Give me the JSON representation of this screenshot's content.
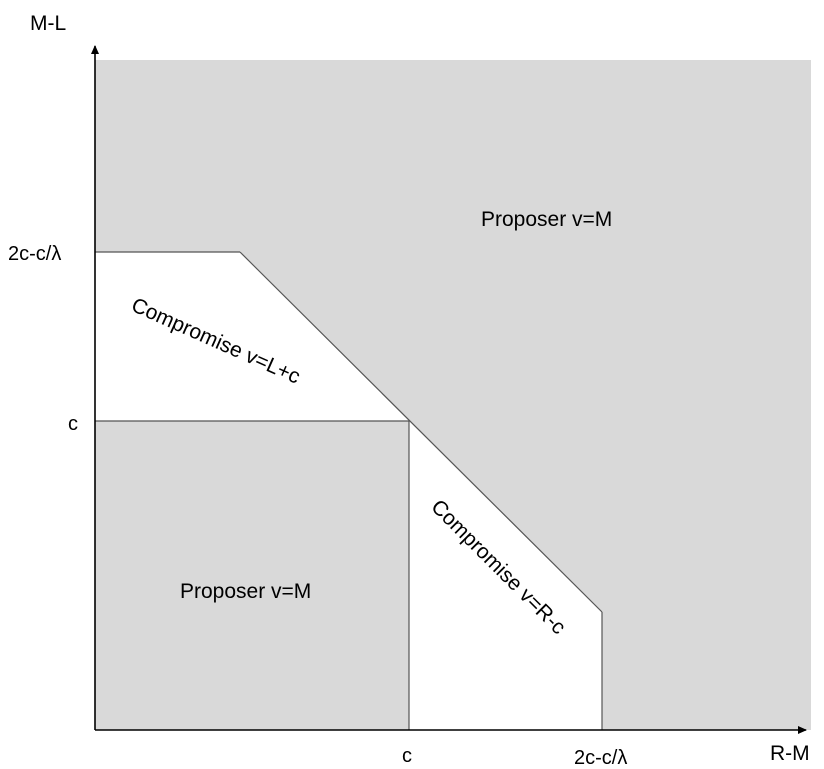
{
  "axes": {
    "x_label": "R-M",
    "y_label": "M-L",
    "x_ticks": [
      "c",
      "2c-c/λ"
    ],
    "y_ticks": [
      "2c-c/λ",
      "c"
    ]
  },
  "regions": [
    {
      "name": "proposer-top",
      "label": "Proposer v=M",
      "fill": "#d9d9d9"
    },
    {
      "name": "compromise-upper",
      "label": "Compromise v=L+c",
      "fill": "#ffffff"
    },
    {
      "name": "proposer-bottom",
      "label": "Proposer v=M",
      "fill": "#d9d9d9"
    },
    {
      "name": "compromise-lower",
      "label": "Compromise v=R-c",
      "fill": "#ffffff"
    }
  ],
  "colors": {
    "shaded": "#d9d9d9",
    "unshaded": "#ffffff",
    "line": "#000000",
    "boundary": "#808080"
  }
}
